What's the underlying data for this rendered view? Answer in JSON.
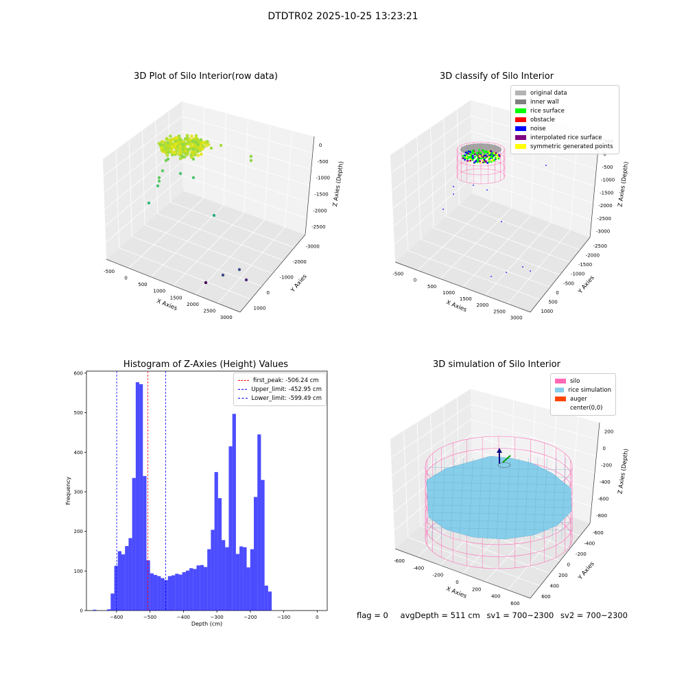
{
  "suptitle": "DTDTR02 2025-10-25 13:23:21",
  "panels": {
    "p1": {
      "title": "3D Plot of Silo Interior(row data)",
      "xlabel": "X Axies",
      "ylabel": "Y Axies",
      "zlabel": "Z Axies (Depth)",
      "xticks": [
        "-500",
        "0",
        "500",
        "1000",
        "1500",
        "2000",
        "2500",
        "3000"
      ],
      "yticks": [
        "1000",
        "0",
        "-1000",
        "-2000",
        "-3000"
      ],
      "zticks": [
        "0",
        "-500",
        "-1000",
        "-1500",
        "-2000",
        "-2500"
      ]
    },
    "p2": {
      "title": "3D classify of Silo Interior",
      "xlabel": "X Axies",
      "ylabel": "Y Axies",
      "zlabel": "Z Axies (Depth)",
      "xticks": [
        "-500",
        "0",
        "500",
        "1000",
        "1500",
        "2000",
        "2500",
        "3000"
      ],
      "yticks": [
        "1000",
        "500",
        "0",
        "-500",
        "-1000",
        "-1500",
        "-2000",
        "-2500"
      ],
      "zticks": [
        "500",
        "0",
        "-500",
        "-1000",
        "-1500",
        "-2000",
        "-2500",
        "-3000"
      ],
      "legend": [
        {
          "label": "original data",
          "color": "#b3b3b3"
        },
        {
          "label": "inner wall",
          "color": "#808080"
        },
        {
          "label": "rice surface",
          "color": "#00ff00"
        },
        {
          "label": "obstacle",
          "color": "#ff0000"
        },
        {
          "label": "noise",
          "color": "#0000ff"
        },
        {
          "label": "interpolated rice surface",
          "color": "#800080"
        },
        {
          "label": "symmetric generated points",
          "color": "#ffff00"
        }
      ]
    },
    "p4": {
      "title": "3D simulation of Silo Interior",
      "xlabel": "X Axies",
      "ylabel": "Y Axies",
      "zlabel": "Z Axies (Depth)",
      "xticks": [
        "-600",
        "-400",
        "-200",
        "0",
        "200",
        "400",
        "600"
      ],
      "yticks": [
        "600",
        "400",
        "200",
        "0",
        "-200",
        "-400",
        "-600"
      ],
      "zticks": [
        "200",
        "0",
        "-200",
        "-400",
        "-600",
        "-800"
      ],
      "legend": [
        {
          "label": "silo",
          "color": "#ff69b4"
        },
        {
          "label": "rice simulation",
          "color": "#87ceeb"
        },
        {
          "label": "auger",
          "color": "#ff4500"
        },
        {
          "label": "center(0,0)",
          "color": "#ffffff"
        }
      ]
    }
  },
  "status": {
    "flag": "flag = 0",
    "avg_depth": "avgDepth = 511 cm",
    "sv1": "sv1 = 700~2300",
    "sv2": "sv2 = 700~2300"
  },
  "chart_data": [
    {
      "type": "scatter",
      "title": "3D Plot of Silo Interior(row data)",
      "xlabel": "X Axies",
      "ylabel": "Y Axies",
      "zlabel": "Z Axies (Depth)",
      "xlim": [
        -600,
        3000
      ],
      "ylim": [
        -3000,
        1400
      ],
      "zlim": [
        -2800,
        100
      ]
    },
    {
      "type": "scatter",
      "title": "3D classify of Silo Interior",
      "xlabel": "X Axies",
      "ylabel": "Y Axies",
      "zlabel": "Z Axies (Depth)",
      "xlim": [
        -600,
        3000
      ],
      "ylim": [
        -2500,
        1200
      ],
      "zlim": [
        -3100,
        600
      ],
      "series": [
        {
          "name": "original data"
        },
        {
          "name": "inner wall"
        },
        {
          "name": "rice surface"
        },
        {
          "name": "obstacle"
        },
        {
          "name": "noise"
        },
        {
          "name": "interpolated rice surface"
        },
        {
          "name": "symmetric generated points"
        }
      ]
    },
    {
      "type": "bar",
      "title": "Histogram of Z-Axies (Height) Values",
      "xlabel": "Depth (cm)",
      "ylabel": "Frequency",
      "xlim": [
        -690,
        30
      ],
      "ylim": [
        0,
        605
      ],
      "xticks": [
        -600,
        -500,
        -400,
        -300,
        -200,
        -100,
        0
      ],
      "yticks": [
        0,
        100,
        200,
        300,
        400,
        500,
        600
      ],
      "bin_width": 10.7,
      "bin_start": -671,
      "counts": [
        2,
        0,
        0,
        0,
        3,
        43,
        113,
        150,
        142,
        163,
        183,
        335,
        577,
        572,
        340,
        127,
        94,
        90,
        87,
        82,
        77,
        87,
        89,
        93,
        91,
        97,
        101,
        107,
        105,
        114,
        115,
        110,
        155,
        204,
        350,
        284,
        178,
        160,
        415,
        497,
        143,
        162,
        160,
        109,
        155,
        287,
        445,
        330,
        63,
        48
      ],
      "vlines": [
        {
          "label": "first_peak: -506.24 cm",
          "x": -506.24,
          "color": "#ff0000"
        },
        {
          "label": "Upper_limit: -452.95 cm",
          "x": -452.95,
          "color": "#0000ff"
        },
        {
          "label": "Lower_limit: -599.49 cm",
          "x": -599.49,
          "color": "#0000ff"
        }
      ]
    },
    {
      "type": "surface",
      "title": "3D simulation of Silo Interior",
      "xlabel": "X Axies",
      "ylabel": "Y Axies",
      "zlabel": "Z Axies (Depth)",
      "xlim": [
        -650,
        650
      ],
      "ylim": [
        -650,
        650
      ],
      "zlim": [
        -950,
        350
      ],
      "series": [
        {
          "name": "silo"
        },
        {
          "name": "rice simulation"
        },
        {
          "name": "auger"
        },
        {
          "name": "center(0,0)"
        }
      ]
    }
  ]
}
